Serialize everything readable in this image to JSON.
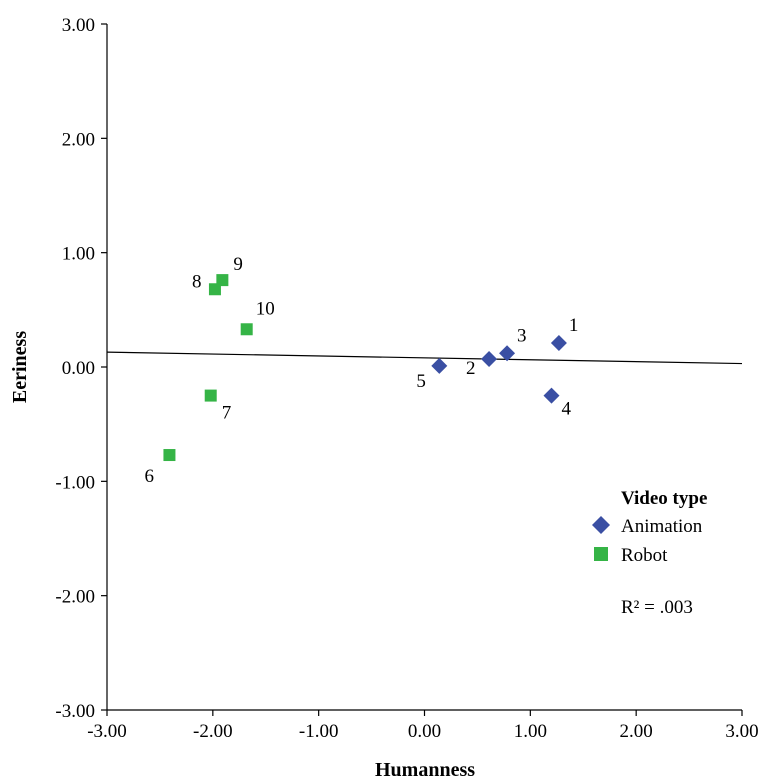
{
  "chart_data": {
    "type": "scatter",
    "xlabel": "Humanness",
    "ylabel": "Eeriness",
    "xlim": [
      -3.0,
      3.0
    ],
    "ylim": [
      -3.0,
      3.0
    ],
    "x_ticks": [
      "-3.00",
      "-2.00",
      "-1.00",
      "0.00",
      "1.00",
      "2.00",
      "3.00"
    ],
    "y_ticks": [
      "3.00",
      "2.00",
      "1.00",
      "0.00",
      "-1.00",
      "-2.00",
      "-3.00"
    ],
    "x_tick_values": [
      -3,
      -2,
      -1,
      0,
      1,
      2,
      3
    ],
    "y_tick_values": [
      3,
      2,
      1,
      0,
      -1,
      -2,
      -3
    ],
    "grid": false,
    "legend_placement": "bottom-right",
    "legend_title": "Video type",
    "series": [
      {
        "name": "Animation",
        "marker": "diamond",
        "color": "#3a4fa3",
        "points": [
          {
            "label": "1",
            "x": 1.27,
            "y": 0.21
          },
          {
            "label": "2",
            "x": 0.61,
            "y": 0.07
          },
          {
            "label": "3",
            "x": 0.78,
            "y": 0.12
          },
          {
            "label": "4",
            "x": 1.2,
            "y": -0.25
          },
          {
            "label": "5",
            "x": 0.14,
            "y": 0.01
          }
        ]
      },
      {
        "name": "Robot",
        "marker": "square",
        "color": "#35b446",
        "points": [
          {
            "label": "6",
            "x": -2.41,
            "y": -0.77
          },
          {
            "label": "7",
            "x": -2.02,
            "y": -0.25
          },
          {
            "label": "8",
            "x": -1.98,
            "y": 0.68
          },
          {
            "label": "9",
            "x": -1.91,
            "y": 0.76
          },
          {
            "label": "10",
            "x": -1.68,
            "y": 0.33
          }
        ]
      }
    ],
    "fit_line": {
      "x": [
        -3.0,
        3.0
      ],
      "y": [
        0.13,
        0.03
      ]
    },
    "annotation": "R² = .003"
  }
}
